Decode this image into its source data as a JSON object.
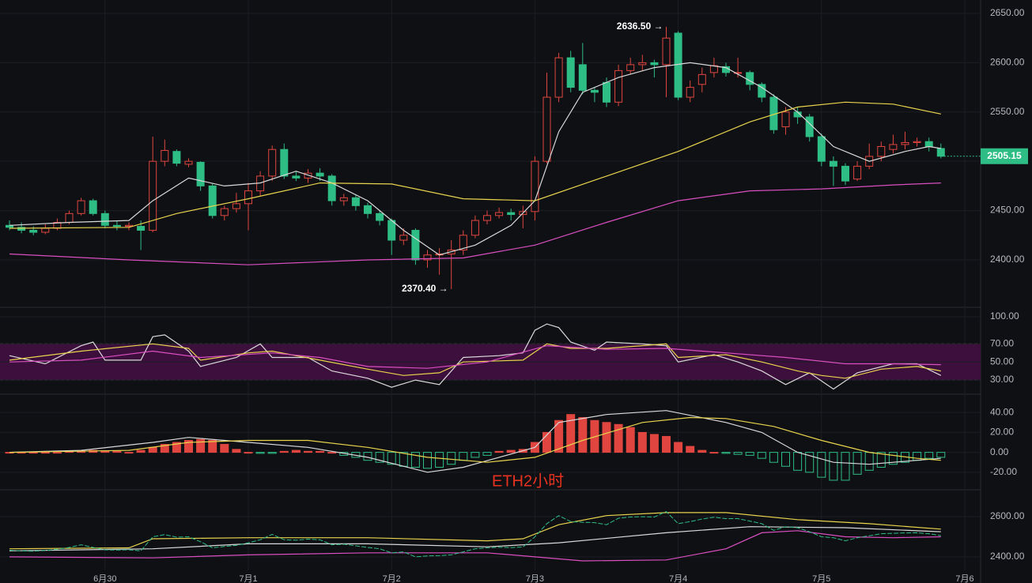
{
  "chart_data": [
    {
      "type": "candlestick",
      "up_color": "#e0463f",
      "down_color": "#2ebd85",
      "ylim": [
        2352.7,
        2663.6
      ],
      "yticks": [
        {
          "value": 2650,
          "label": "2650.00"
        },
        {
          "value": 2600,
          "label": "2600.00"
        },
        {
          "value": 2550,
          "label": "2550.00"
        },
        {
          "value": 2500,
          "label": "2500.00"
        },
        {
          "value": 2450,
          "label": "2450.00"
        },
        {
          "value": 2400,
          "label": "2400.00"
        }
      ],
      "xticks": [
        {
          "value": 8,
          "label": "6月30"
        },
        {
          "value": 20,
          "label": "7月1"
        },
        {
          "value": 32,
          "label": "7月2"
        },
        {
          "value": 44,
          "label": "7月3"
        },
        {
          "value": 56,
          "label": "7月4"
        },
        {
          "value": 68,
          "label": "7月5"
        },
        {
          "value": 80,
          "label": "7月6"
        }
      ],
      "open": [
        2435,
        2433,
        2430,
        2428,
        2432,
        2438,
        2447,
        2460,
        2447,
        2435,
        2434,
        2434,
        2430,
        2500,
        2510,
        2497,
        2499,
        2475,
        2445,
        2452,
        2457,
        2470,
        2485,
        2512,
        2485,
        2483,
        2488,
        2485,
        2460,
        2463,
        2455,
        2447,
        2440,
        2420,
        2430,
        2400,
        2405,
        2406,
        2410,
        2425,
        2440,
        2445,
        2448,
        2446,
        2449,
        2500,
        2565,
        2605,
        2598,
        2572,
        2580,
        2560,
        2592,
        2598,
        2600,
        2598,
        2630,
        2565,
        2578,
        2590,
        2596,
        2590,
        2590,
        2578,
        2565,
        2535,
        2550,
        2545,
        2525,
        2500,
        2495,
        2482,
        2495,
        2505,
        2512,
        2517,
        2519,
        2520,
        2513
      ],
      "high": [
        2440,
        2438,
        2434,
        2436,
        2442,
        2450,
        2463,
        2462,
        2450,
        2440,
        2438,
        2440,
        2525,
        2522,
        2512,
        2503,
        2500,
        2478,
        2455,
        2468,
        2478,
        2490,
        2516,
        2518,
        2490,
        2492,
        2493,
        2487,
        2467,
        2466,
        2458,
        2450,
        2442,
        2432,
        2432,
        2410,
        2412,
        2420,
        2430,
        2445,
        2450,
        2453,
        2452,
        2455,
        2505,
        2590,
        2610,
        2612,
        2620,
        2575,
        2585,
        2598,
        2605,
        2608,
        2603,
        2636.5,
        2632,
        2582,
        2595,
        2605,
        2600,
        2605,
        2592,
        2580,
        2568,
        2555,
        2555,
        2548,
        2528,
        2505,
        2498,
        2500,
        2518,
        2520,
        2527,
        2530,
        2524,
        2524,
        2518
      ],
      "low": [
        2430,
        2427,
        2425,
        2426,
        2430,
        2436,
        2445,
        2445,
        2432,
        2430,
        2430,
        2410,
        2428,
        2495,
        2495,
        2494,
        2470,
        2442,
        2440,
        2448,
        2430,
        2465,
        2480,
        2482,
        2480,
        2478,
        2480,
        2455,
        2455,
        2450,
        2442,
        2435,
        2405,
        2415,
        2395,
        2392,
        2385,
        2370.4,
        2405,
        2422,
        2436,
        2442,
        2440,
        2432,
        2440,
        2498,
        2560,
        2570,
        2568,
        2560,
        2555,
        2556,
        2588,
        2592,
        2585,
        2565,
        2562,
        2560,
        2570,
        2585,
        2586,
        2585,
        2572,
        2560,
        2528,
        2527,
        2538,
        2520,
        2495,
        2475,
        2476,
        2480,
        2492,
        2500,
        2508,
        2512,
        2515,
        2510,
        2503
      ],
      "close": [
        2433,
        2430,
        2428,
        2432,
        2438,
        2447,
        2460,
        2447,
        2435,
        2434,
        2435,
        2430,
        2500,
        2511,
        2498,
        2500,
        2475,
        2445,
        2452,
        2457,
        2470,
        2485,
        2512,
        2485,
        2483,
        2488,
        2485,
        2460,
        2463,
        2455,
        2447,
        2440,
        2420,
        2425,
        2400,
        2405,
        2406,
        2410,
        2425,
        2440,
        2445,
        2448,
        2446,
        2449,
        2500,
        2565,
        2605,
        2575,
        2572,
        2570,
        2560,
        2592,
        2598,
        2600,
        2598,
        2625,
        2565,
        2575,
        2588,
        2597,
        2590,
        2590,
        2578,
        2565,
        2532,
        2550,
        2545,
        2525,
        2500,
        2495,
        2480,
        2495,
        2505,
        2515,
        2517,
        2519,
        2520,
        2515,
        2505.15
      ],
      "series": [
        {
          "color": "#d9d9d9",
          "x": [
            0,
            5,
            10,
            12,
            15,
            18,
            21,
            24,
            27,
            30,
            33,
            36,
            39,
            42,
            44,
            46,
            48,
            51,
            54,
            57,
            60,
            63,
            66,
            69,
            72,
            75,
            77,
            78
          ],
          "values": [
            2435,
            2438,
            2440,
            2460,
            2483,
            2475,
            2478,
            2490,
            2478,
            2460,
            2430,
            2405,
            2415,
            2435,
            2460,
            2530,
            2570,
            2585,
            2595,
            2600,
            2595,
            2575,
            2550,
            2515,
            2500,
            2510,
            2515,
            2513
          ]
        },
        {
          "color": "#e8d44d",
          "x": [
            0,
            10,
            14,
            20,
            26,
            32,
            38,
            44,
            50,
            56,
            62,
            66,
            70,
            74,
            78
          ],
          "values": [
            2432,
            2433,
            2447,
            2462,
            2478,
            2477,
            2462,
            2460,
            2485,
            2510,
            2540,
            2555,
            2560,
            2558,
            2548
          ]
        },
        {
          "color": "#d94fc0",
          "x": [
            0,
            10,
            20,
            30,
            38,
            44,
            50,
            56,
            62,
            68,
            74,
            78
          ],
          "values": [
            2406,
            2400,
            2395,
            2400,
            2402,
            2415,
            2438,
            2460,
            2470,
            2472,
            2476,
            2478
          ]
        }
      ],
      "annotations": [
        {
          "label": "2636.50 →",
          "value": 2636.5
        },
        {
          "label": "2370.40 →",
          "value": 2370.4
        }
      ]
    },
    {
      "type": "lines",
      "ylim": [
        15.2,
        109.6
      ],
      "yticks": [
        {
          "value": 100,
          "label": "100.00"
        },
        {
          "value": 70,
          "label": "70.00"
        },
        {
          "value": 50,
          "label": "50.00"
        },
        {
          "value": 30,
          "label": "30.00"
        }
      ],
      "band": {
        "from": 30,
        "to": 70,
        "color": "#3d0f3c"
      },
      "series": [
        {
          "color": "#d9d9d9",
          "x": [
            0,
            3,
            6,
            7,
            8,
            11,
            12,
            13,
            15,
            16,
            19,
            21,
            22,
            25,
            27,
            30,
            32,
            34,
            36,
            38,
            41,
            43,
            44,
            45,
            46,
            47,
            49,
            50,
            53,
            55,
            56,
            59,
            61,
            63,
            65,
            67,
            69,
            71,
            74,
            76,
            78
          ],
          "values": [
            57,
            48,
            68,
            72,
            52,
            52,
            78,
            80,
            62,
            45,
            55,
            70,
            55,
            55,
            40,
            32,
            22,
            30,
            25,
            55,
            57,
            60,
            85,
            92,
            88,
            72,
            63,
            72,
            70,
            68,
            50,
            58,
            50,
            40,
            25,
            38,
            20,
            38,
            48,
            48,
            35
          ]
        },
        {
          "color": "#e8d44d",
          "x": [
            0,
            6,
            12,
            15,
            16,
            20,
            22,
            26,
            30,
            33,
            36,
            38,
            43,
            45,
            47,
            50,
            55,
            56,
            60,
            63,
            66,
            68,
            70,
            73,
            76,
            78
          ],
          "values": [
            52,
            62,
            70,
            65,
            52,
            60,
            62,
            52,
            42,
            35,
            38,
            50,
            52,
            70,
            65,
            65,
            70,
            55,
            58,
            50,
            40,
            35,
            32,
            42,
            45,
            40
          ]
        },
        {
          "color": "#d94fc0",
          "x": [
            0,
            6,
            12,
            16,
            22,
            26,
            30,
            35,
            40,
            45,
            50,
            55,
            60,
            65,
            70,
            74,
            78
          ],
          "values": [
            50,
            52,
            62,
            55,
            60,
            55,
            45,
            43,
            50,
            68,
            64,
            65,
            60,
            55,
            48,
            48,
            47
          ]
        }
      ]
    },
    {
      "type": "macd",
      "ylim": [
        -36.8,
        57.6
      ],
      "yticks": [
        {
          "value": 40,
          "label": "40.00"
        },
        {
          "value": 20,
          "label": "20.00"
        },
        {
          "value": 0,
          "label": "0.00"
        },
        {
          "value": -20,
          "label": "-20.00"
        }
      ],
      "up_color": "#e0463f",
      "down_color": "#2ebd85",
      "histogram": [
        0,
        0,
        0,
        0,
        0,
        1,
        1,
        2,
        1,
        1,
        0,
        2,
        5,
        8,
        10,
        12,
        13,
        12,
        8,
        3,
        0,
        -1,
        -1,
        1,
        2,
        1,
        1,
        0,
        -3,
        -5,
        -8,
        -10,
        -12,
        -14,
        -15,
        -16,
        -15,
        -12,
        -8,
        -5,
        -3,
        1,
        2,
        3,
        10,
        20,
        32,
        38,
        35,
        32,
        30,
        28,
        25,
        20,
        18,
        16,
        10,
        6,
        2,
        0,
        -1,
        -2,
        -3,
        -6,
        -10,
        -14,
        -18,
        -20,
        -25,
        -28,
        -28,
        -22,
        -18,
        -15,
        -12,
        -10,
        -8,
        -6,
        -5
      ],
      "series": [
        {
          "color": "#d9d9d9",
          "x": [
            0,
            6,
            12,
            15,
            20,
            25,
            30,
            35,
            38,
            41,
            44,
            46,
            50,
            55,
            60,
            63,
            66,
            69,
            72,
            76,
            78
          ],
          "values": [
            0,
            2,
            10,
            15,
            10,
            5,
            -5,
            -20,
            -15,
            -5,
            5,
            30,
            38,
            42,
            30,
            20,
            0,
            -10,
            -12,
            -8,
            -6
          ]
        },
        {
          "color": "#e8d44d",
          "x": [
            0,
            10,
            15,
            20,
            25,
            30,
            35,
            40,
            44,
            48,
            53,
            57,
            60,
            64,
            68,
            72,
            76,
            78
          ],
          "values": [
            0,
            2,
            10,
            12,
            12,
            5,
            -5,
            -10,
            -5,
            12,
            30,
            35,
            34,
            26,
            12,
            0,
            -6,
            -8
          ]
        }
      ],
      "annotation": "ETH2小时"
    },
    {
      "type": "bands",
      "ylim": [
        2282,
        2725.5
      ],
      "yticks": [
        {
          "value": 2600,
          "label": "2600.00"
        },
        {
          "value": 2400,
          "label": "2400.00"
        }
      ],
      "series": [
        {
          "color": "#e8d44d",
          "x": [
            0,
            10,
            12,
            20,
            30,
            40,
            43,
            46,
            50,
            55,
            60,
            66,
            72,
            78
          ],
          "values": [
            2440,
            2445,
            2490,
            2495,
            2495,
            2480,
            2490,
            2560,
            2605,
            2620,
            2620,
            2585,
            2565,
            2538
          ]
        },
        {
          "color": "#d9d9d9",
          "x": [
            0,
            12,
            20,
            30,
            40,
            46,
            55,
            62,
            70,
            78
          ],
          "values": [
            2430,
            2440,
            2465,
            2465,
            2450,
            2470,
            2520,
            2550,
            2545,
            2525
          ]
        },
        {
          "color": "#d94fc0",
          "x": [
            0,
            12,
            20,
            30,
            40,
            44,
            48,
            55,
            60,
            63,
            66,
            70,
            74,
            78
          ],
          "values": [
            2400,
            2395,
            2410,
            2420,
            2420,
            2400,
            2380,
            2385,
            2440,
            2520,
            2530,
            2500,
            2495,
            2500
          ]
        }
      ]
    }
  ]
}
